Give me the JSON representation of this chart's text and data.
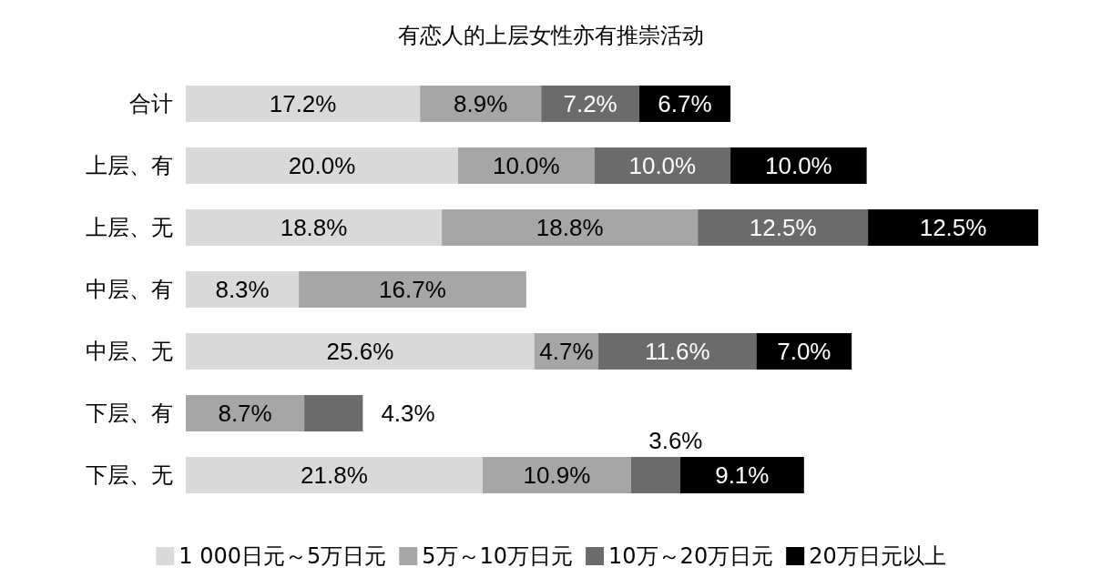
{
  "chart_data": {
    "type": "bar",
    "title": "有恋人的上层女性亦有推崇活动",
    "orientation": "horizontal",
    "stacked": true,
    "legend": "bottom",
    "categories": [
      "合计",
      "上层、有",
      "上层、无",
      "中层、有",
      "中层、无",
      "下层、有",
      "下层、无"
    ],
    "series": [
      {
        "name": "1 000日元～5万日元",
        "color": "#d9d9d9",
        "values": [
          17.2,
          20.0,
          18.8,
          8.3,
          25.6,
          null,
          21.8
        ],
        "value_labels": [
          "17.2%",
          "20.0%",
          "18.8%",
          "8.3%",
          "25.6%",
          null,
          "21.8%"
        ]
      },
      {
        "name": "5万～10万日元",
        "color": "#a6a6a6",
        "values": [
          8.9,
          10.0,
          18.8,
          16.7,
          4.7,
          8.7,
          10.9
        ],
        "value_labels": [
          "8.9%",
          "10.0%",
          "18.8%",
          "16.7%",
          "4.7%",
          "8.7%",
          "10.9%"
        ]
      },
      {
        "name": "10万～20万日元",
        "color": "#6b6b6b",
        "values": [
          7.2,
          10.0,
          12.5,
          null,
          11.6,
          4.3,
          3.6
        ],
        "value_labels": [
          "7.2%",
          "10.0%",
          "12.5%",
          null,
          "11.6%",
          "4.3%",
          "3.6%"
        ]
      },
      {
        "name": "20万日元以上",
        "color": "#000000",
        "values": [
          6.7,
          10.0,
          12.5,
          null,
          7.0,
          null,
          9.1
        ],
        "value_labels": [
          "6.7%",
          "10.0%",
          "12.5%",
          null,
          "7.0%",
          null,
          "9.1%"
        ]
      }
    ]
  }
}
